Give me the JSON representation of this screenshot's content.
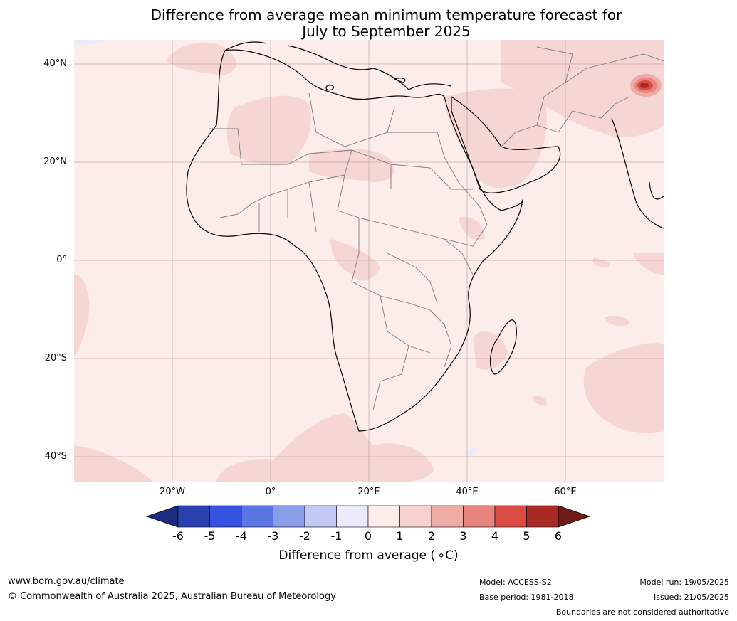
{
  "title_line1": "Difference from average mean minimum temperature forecast for",
  "title_line2": "July to September 2025",
  "lat_labels": [
    "40°N",
    "20°N",
    "0°",
    "20°S",
    "40°S"
  ],
  "lon_labels": [
    "20°W",
    "0°",
    "20°E",
    "40°E",
    "60°E"
  ],
  "colorbar": {
    "ticks": [
      "-6",
      "-5",
      "-4",
      "-3",
      "-2",
      "-1",
      "0",
      "1",
      "2",
      "3",
      "4",
      "5",
      "6"
    ],
    "colors": [
      "#1b2b80",
      "#2a40b0",
      "#3551e0",
      "#5c75e4",
      "#8a9de8",
      "#c2c9f2",
      "#e9ebfa",
      "#fcecea",
      "#f5d2cf",
      "#eeaca7",
      "#e8847f",
      "#da4b43",
      "#a92a24",
      "#6e1a16"
    ],
    "label": "Difference from average ( ∘C)"
  },
  "footer": {
    "website": "www.bom.gov.au/climate",
    "copyright": "© Commonwealth of Australia 2025, Australian Bureau of Meteorology",
    "model": "Model: ACCESS-S2",
    "base_period": "Base period: 1981-2018",
    "model_run": "Model run: 19/05/2025",
    "issued": "Issued: 21/05/2025",
    "disclaimer": "Boundaries are not considered authoritative"
  }
}
